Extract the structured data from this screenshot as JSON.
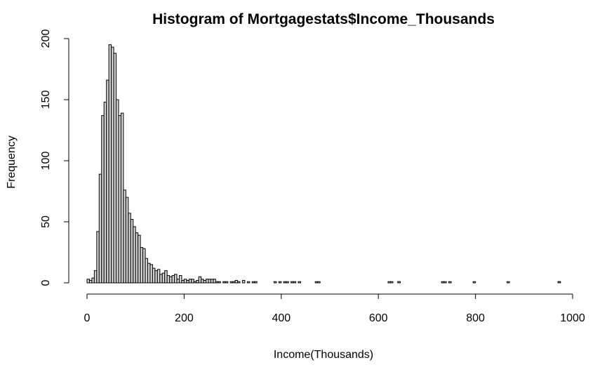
{
  "chart_data": {
    "type": "bar",
    "title": "Histogram of Mortgagestats$Income_Thousands",
    "xlabel": "Income(Thousands)",
    "ylabel": "Frequency",
    "xlim": [
      0,
      1000
    ],
    "ylim": [
      0,
      200
    ],
    "x_ticks": [
      0,
      200,
      400,
      600,
      800,
      1000
    ],
    "y_ticks": [
      0,
      50,
      100,
      150,
      200
    ],
    "grid": false,
    "bin_width": 5,
    "bin_start": 0,
    "values": [
      3,
      2,
      4,
      10,
      42,
      89,
      137,
      148,
      166,
      195,
      193,
      188,
      150,
      137,
      139,
      76,
      70,
      57,
      52,
      46,
      41,
      39,
      29,
      28,
      20,
      16,
      15,
      12,
      10,
      11,
      7,
      8,
      10,
      6,
      5,
      6,
      7,
      3,
      6,
      2,
      3,
      2,
      3,
      3,
      1,
      2,
      5,
      3,
      2,
      3,
      3,
      3,
      3,
      1,
      1,
      0,
      1,
      1,
      0,
      1,
      1,
      2,
      1,
      0,
      2,
      0,
      1,
      0,
      1,
      1,
      0,
      0,
      0,
      0,
      0,
      0,
      0,
      1,
      0,
      1,
      0,
      1,
      1,
      0,
      1,
      1,
      0,
      1,
      0,
      0,
      0,
      0,
      0,
      0,
      1,
      1,
      0,
      0,
      0,
      0,
      0,
      0,
      0,
      0,
      0,
      0,
      0,
      0,
      0,
      0,
      0,
      0,
      0,
      0,
      0,
      0,
      0,
      0,
      0,
      0,
      0,
      0,
      0,
      0,
      0,
      1,
      0,
      0,
      1,
      0,
      0,
      0,
      0,
      0,
      0,
      0,
      0,
      0,
      0,
      0,
      0,
      0,
      0,
      0,
      0,
      0,
      0,
      1,
      0,
      0,
      0,
      0,
      0,
      0,
      0,
      0,
      0,
      0,
      0,
      0,
      0,
      0,
      0,
      0,
      0,
      0,
      0,
      0,
      0,
      0,
      0,
      0,
      0,
      0,
      0,
      0,
      0,
      0,
      0,
      0,
      0,
      0,
      0,
      0,
      0,
      0,
      0,
      0,
      0,
      0,
      0,
      0,
      0,
      0,
      1
    ],
    "sparse_bins": [
      {
        "x": 620,
        "count": 1
      },
      {
        "x": 640,
        "count": 1
      },
      {
        "x": 730,
        "count": 1
      },
      {
        "x": 745,
        "count": 1
      },
      {
        "x": 795,
        "count": 1
      },
      {
        "x": 865,
        "count": 1
      },
      {
        "x": 970,
        "count": 1
      }
    ]
  }
}
